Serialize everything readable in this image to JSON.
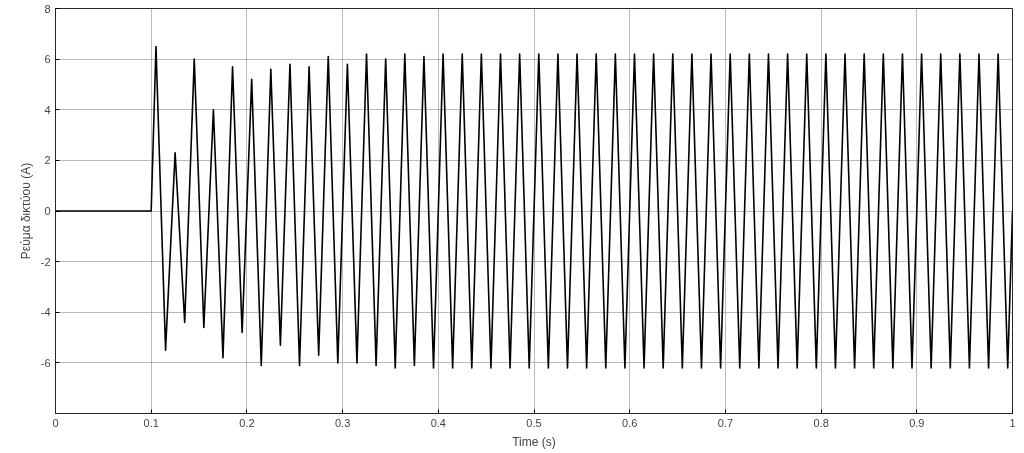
{
  "chart_data": {
    "type": "line",
    "xlabel": "Time (s)",
    "ylabel": "Ρεύμα δικτύου (A)",
    "xlim": [
      0,
      1
    ],
    "ylim": [
      -8,
      8
    ],
    "xticks": [
      0,
      0.1,
      0.2,
      0.3,
      0.4,
      0.5,
      0.6,
      0.7,
      0.8,
      0.9,
      1
    ],
    "yticks": [
      -6,
      -4,
      -2,
      0,
      2,
      4,
      6,
      8
    ],
    "grid": true,
    "marker": "none",
    "line_style": "solid",
    "series": [
      {
        "color": "#000000",
        "x": [
          0,
          0.1,
          0.105,
          0.115,
          0.125,
          0.135,
          0.145,
          0.155,
          0.165,
          0.175,
          0.185,
          0.195,
          0.205,
          0.215,
          0.225,
          0.235,
          0.245,
          0.255,
          0.265,
          0.275,
          0.285,
          0.295,
          0.305,
          0.315,
          0.325,
          0.335,
          0.345,
          0.355,
          0.365,
          0.375,
          0.385,
          0.395,
          0.405,
          0.415,
          0.425,
          0.435,
          0.445,
          0.455,
          0.465,
          0.475,
          0.485,
          0.495,
          0.505,
          0.515,
          0.525,
          0.535,
          0.545,
          0.555,
          0.565,
          0.575,
          0.585,
          0.595,
          0.605,
          0.615,
          0.625,
          0.635,
          0.645,
          0.655,
          0.665,
          0.675,
          0.685,
          0.695,
          0.705,
          0.715,
          0.725,
          0.735,
          0.745,
          0.755,
          0.765,
          0.775,
          0.785,
          0.795,
          0.805,
          0.815,
          0.825,
          0.835,
          0.845,
          0.855,
          0.865,
          0.875,
          0.885,
          0.895,
          0.905,
          0.915,
          0.925,
          0.935,
          0.945,
          0.955,
          0.965,
          0.975,
          0.985,
          0.995,
          1
        ],
        "values": [
          0,
          0,
          6.5,
          -5.5,
          2.3,
          -4.4,
          6.0,
          -4.6,
          4.0,
          -5.8,
          5.7,
          -4.8,
          5.2,
          -6.1,
          5.6,
          -5.3,
          5.8,
          -6.1,
          5.7,
          -5.7,
          6.1,
          -6.0,
          5.8,
          -6.0,
          6.2,
          -6.1,
          6.0,
          -6.2,
          6.2,
          -6.1,
          6.1,
          -6.2,
          6.2,
          -6.2,
          6.2,
          -6.2,
          6.2,
          -6.2,
          6.2,
          -6.2,
          6.2,
          -6.2,
          6.2,
          -6.2,
          6.2,
          -6.2,
          6.2,
          -6.2,
          6.2,
          -6.2,
          6.2,
          -6.2,
          6.2,
          -6.2,
          6.2,
          -6.2,
          6.2,
          -6.2,
          6.2,
          -6.2,
          6.2,
          -6.2,
          6.2,
          -6.2,
          6.2,
          -6.2,
          6.2,
          -6.2,
          6.2,
          -6.2,
          6.2,
          -6.2,
          6.2,
          -6.2,
          6.2,
          -6.2,
          6.2,
          -6.2,
          6.2,
          -6.2,
          6.2,
          -6.2,
          6.2,
          -6.2,
          6.2,
          -6.2,
          6.2,
          -6.2,
          6.2,
          -6.2,
          6.2,
          -6.2,
          0
        ]
      }
    ]
  }
}
